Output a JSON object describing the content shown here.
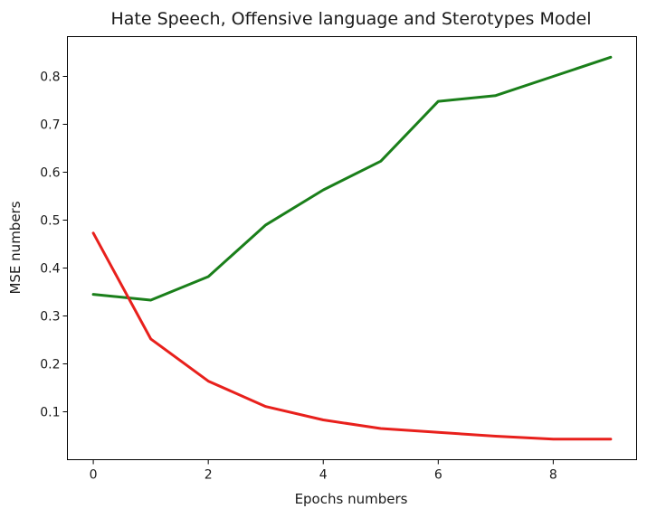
{
  "chart_data": {
    "type": "line",
    "title": "Hate Speech, Offensive language and Sterotypes Model",
    "xlabel": "Epochs numbers",
    "ylabel": "MSE numbers",
    "xlim": [
      -0.45,
      9.45
    ],
    "ylim": [
      0.0,
      0.883
    ],
    "xticks": [
      0,
      2,
      4,
      6,
      8
    ],
    "yticks": [
      0.1,
      0.2,
      0.3,
      0.4,
      0.5,
      0.6,
      0.7,
      0.8
    ],
    "xtick_labels": [
      "0",
      "2",
      "4",
      "6",
      "8"
    ],
    "ytick_labels": [
      "0.1",
      "0.2",
      "0.3",
      "0.4",
      "0.5",
      "0.6",
      "0.7",
      "0.8"
    ],
    "grid": false,
    "x": [
      0,
      1,
      2,
      3,
      4,
      5,
      6,
      7,
      8,
      9
    ],
    "series": [
      {
        "name": "green-series",
        "color": "#1a7f1a",
        "values": [
          0.345,
          0.333,
          0.382,
          0.49,
          0.563,
          0.623,
          0.748,
          0.76,
          0.8,
          0.84
        ]
      },
      {
        "name": "red-series",
        "color": "#e8201c",
        "values": [
          0.473,
          0.252,
          0.164,
          0.111,
          0.083,
          0.065,
          0.057,
          0.049,
          0.043,
          0.043
        ]
      }
    ]
  }
}
